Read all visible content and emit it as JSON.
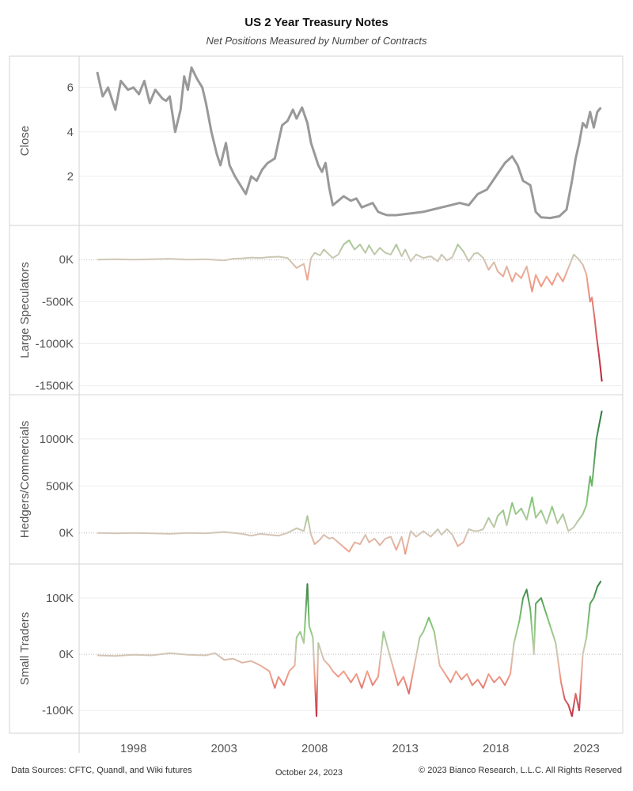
{
  "header": {
    "title": "US 2 Year Treasury Notes",
    "subtitle": "Net Positions Measured by Number of Contracts"
  },
  "footer": {
    "sources": "Data Sources: CFTC, Quandl, and Wiki futures",
    "date": "October 24, 2023",
    "copyright": "© 2023 Bianco Research, L.L.C. All Rights Reserved"
  },
  "chart_data": [
    {
      "type": "line",
      "ylabel": "Close",
      "ylim": [
        0,
        7.2
      ],
      "yticks": [
        {
          "v": 2,
          "label": "2"
        },
        {
          "v": 4,
          "label": "4"
        },
        {
          "v": 6,
          "label": "6"
        }
      ],
      "color": "#999999",
      "gradient": false,
      "points": [
        [
          1996.0,
          6.7
        ],
        [
          1996.3,
          5.6
        ],
        [
          1996.6,
          6.0
        ],
        [
          1997.0,
          5.0
        ],
        [
          1997.3,
          6.3
        ],
        [
          1997.7,
          5.9
        ],
        [
          1998.0,
          6.0
        ],
        [
          1998.3,
          5.7
        ],
        [
          1998.6,
          6.3
        ],
        [
          1998.9,
          5.3
        ],
        [
          1999.2,
          5.9
        ],
        [
          1999.6,
          5.5
        ],
        [
          1999.8,
          5.4
        ],
        [
          2000.0,
          5.6
        ],
        [
          2000.3,
          4.0
        ],
        [
          2000.6,
          5.0
        ],
        [
          2000.8,
          6.5
        ],
        [
          2001.0,
          5.9
        ],
        [
          2001.2,
          6.9
        ],
        [
          2001.5,
          6.4
        ],
        [
          2001.8,
          6.0
        ],
        [
          2002.0,
          5.3
        ],
        [
          2002.3,
          4.0
        ],
        [
          2002.6,
          3.0
        ],
        [
          2002.8,
          2.5
        ],
        [
          2003.1,
          3.5
        ],
        [
          2003.3,
          2.5
        ],
        [
          2003.6,
          2.0
        ],
        [
          2003.9,
          1.6
        ],
        [
          2004.2,
          1.2
        ],
        [
          2004.5,
          2.0
        ],
        [
          2004.8,
          1.8
        ],
        [
          2005.1,
          2.3
        ],
        [
          2005.4,
          2.6
        ],
        [
          2005.8,
          2.8
        ],
        [
          2006.2,
          4.3
        ],
        [
          2006.5,
          4.5
        ],
        [
          2006.8,
          5.0
        ],
        [
          2007.0,
          4.6
        ],
        [
          2007.3,
          5.1
        ],
        [
          2007.6,
          4.4
        ],
        [
          2007.8,
          3.5
        ],
        [
          2008.0,
          3.0
        ],
        [
          2008.2,
          2.5
        ],
        [
          2008.4,
          2.2
        ],
        [
          2008.6,
          2.6
        ],
        [
          2008.8,
          1.5
        ],
        [
          2009.0,
          0.7
        ],
        [
          2009.3,
          0.9
        ],
        [
          2009.6,
          1.1
        ],
        [
          2010.0,
          0.9
        ],
        [
          2010.3,
          1.0
        ],
        [
          2010.6,
          0.6
        ],
        [
          2010.9,
          0.7
        ],
        [
          2011.2,
          0.8
        ],
        [
          2011.5,
          0.4
        ],
        [
          2011.8,
          0.3
        ],
        [
          2012.0,
          0.25
        ],
        [
          2012.5,
          0.25
        ],
        [
          2013.0,
          0.3
        ],
        [
          2013.5,
          0.35
        ],
        [
          2014.0,
          0.4
        ],
        [
          2014.5,
          0.5
        ],
        [
          2015.0,
          0.6
        ],
        [
          2015.5,
          0.7
        ],
        [
          2016.0,
          0.8
        ],
        [
          2016.5,
          0.7
        ],
        [
          2017.0,
          1.2
        ],
        [
          2017.5,
          1.4
        ],
        [
          2018.0,
          2.0
        ],
        [
          2018.5,
          2.6
        ],
        [
          2018.9,
          2.9
        ],
        [
          2019.2,
          2.5
        ],
        [
          2019.5,
          1.8
        ],
        [
          2019.9,
          1.6
        ],
        [
          2020.2,
          0.4
        ],
        [
          2020.5,
          0.15
        ],
        [
          2021.0,
          0.12
        ],
        [
          2021.5,
          0.2
        ],
        [
          2021.9,
          0.5
        ],
        [
          2022.2,
          1.8
        ],
        [
          2022.4,
          2.8
        ],
        [
          2022.6,
          3.5
        ],
        [
          2022.8,
          4.4
        ],
        [
          2023.0,
          4.2
        ],
        [
          2023.2,
          4.9
        ],
        [
          2023.4,
          4.2
        ],
        [
          2023.6,
          4.9
        ],
        [
          2023.8,
          5.1
        ]
      ]
    },
    {
      "type": "line",
      "ylabel": "Large Speculators",
      "ylim": [
        -1550,
        350
      ],
      "yticks": [
        {
          "v": 0,
          "label": "0K"
        },
        {
          "v": -500,
          "label": "-500K"
        },
        {
          "v": -1000,
          "label": "-1000K"
        },
        {
          "v": -1500,
          "label": "-1500K"
        }
      ],
      "gradient": true,
      "points": [
        [
          1996.0,
          0
        ],
        [
          1997.0,
          5
        ],
        [
          1998.0,
          0
        ],
        [
          1999.0,
          5
        ],
        [
          2000.0,
          10
        ],
        [
          2001.0,
          0
        ],
        [
          2002.0,
          5
        ],
        [
          2003.0,
          -10
        ],
        [
          2003.5,
          10
        ],
        [
          2004.0,
          15
        ],
        [
          2004.5,
          25
        ],
        [
          2005.0,
          20
        ],
        [
          2005.5,
          30
        ],
        [
          2006.0,
          35
        ],
        [
          2006.5,
          20
        ],
        [
          2007.0,
          -100
        ],
        [
          2007.4,
          -50
        ],
        [
          2007.6,
          -240
        ],
        [
          2007.8,
          20
        ],
        [
          2008.0,
          80
        ],
        [
          2008.3,
          50
        ],
        [
          2008.5,
          120
        ],
        [
          2008.8,
          60
        ],
        [
          2009.0,
          20
        ],
        [
          2009.3,
          60
        ],
        [
          2009.6,
          180
        ],
        [
          2009.9,
          230
        ],
        [
          2010.2,
          120
        ],
        [
          2010.5,
          180
        ],
        [
          2010.8,
          80
        ],
        [
          2011.0,
          170
        ],
        [
          2011.3,
          60
        ],
        [
          2011.6,
          140
        ],
        [
          2011.9,
          80
        ],
        [
          2012.2,
          60
        ],
        [
          2012.5,
          180
        ],
        [
          2012.8,
          40
        ],
        [
          2013.0,
          120
        ],
        [
          2013.3,
          -20
        ],
        [
          2013.6,
          60
        ],
        [
          2014.0,
          20
        ],
        [
          2014.4,
          40
        ],
        [
          2014.8,
          -20
        ],
        [
          2015.0,
          60
        ],
        [
          2015.3,
          -10
        ],
        [
          2015.6,
          30
        ],
        [
          2015.9,
          180
        ],
        [
          2016.2,
          100
        ],
        [
          2016.5,
          -20
        ],
        [
          2016.8,
          70
        ],
        [
          2017.0,
          80
        ],
        [
          2017.3,
          20
        ],
        [
          2017.6,
          -120
        ],
        [
          2017.9,
          -30
        ],
        [
          2018.1,
          -140
        ],
        [
          2018.4,
          -200
        ],
        [
          2018.6,
          -80
        ],
        [
          2018.9,
          -260
        ],
        [
          2019.1,
          -160
        ],
        [
          2019.4,
          -220
        ],
        [
          2019.7,
          -80
        ],
        [
          2020.0,
          -380
        ],
        [
          2020.2,
          -180
        ],
        [
          2020.5,
          -320
        ],
        [
          2020.8,
          -200
        ],
        [
          2021.1,
          -300
        ],
        [
          2021.4,
          -160
        ],
        [
          2021.7,
          -260
        ],
        [
          2022.0,
          -100
        ],
        [
          2022.3,
          60
        ],
        [
          2022.5,
          20
        ],
        [
          2022.8,
          -60
        ],
        [
          2023.0,
          -180
        ],
        [
          2023.2,
          -500
        ],
        [
          2023.3,
          -450
        ],
        [
          2023.45,
          -700
        ],
        [
          2023.55,
          -900
        ],
        [
          2023.7,
          -1150
        ],
        [
          2023.85,
          -1450
        ]
      ]
    },
    {
      "type": "line",
      "ylabel": "Hedgers/Commercials",
      "ylim": [
        -280,
        1420
      ],
      "yticks": [
        {
          "v": 0,
          "label": "0K"
        },
        {
          "v": 500,
          "label": "500K"
        },
        {
          "v": 1000,
          "label": "1000K"
        }
      ],
      "gradient": true,
      "points": [
        [
          1996.0,
          0
        ],
        [
          1997.0,
          -5
        ],
        [
          1998.0,
          0
        ],
        [
          1999.0,
          -5
        ],
        [
          2000.0,
          -10
        ],
        [
          2001.0,
          0
        ],
        [
          2002.0,
          -5
        ],
        [
          2003.0,
          10
        ],
        [
          2004.0,
          -10
        ],
        [
          2004.5,
          -30
        ],
        [
          2005.0,
          -10
        ],
        [
          2005.5,
          -20
        ],
        [
          2006.0,
          -30
        ],
        [
          2006.5,
          0
        ],
        [
          2007.0,
          50
        ],
        [
          2007.4,
          20
        ],
        [
          2007.6,
          180
        ],
        [
          2007.8,
          -20
        ],
        [
          2008.0,
          -120
        ],
        [
          2008.3,
          -70
        ],
        [
          2008.5,
          -20
        ],
        [
          2008.8,
          -60
        ],
        [
          2009.0,
          -50
        ],
        [
          2009.3,
          -100
        ],
        [
          2009.6,
          -150
        ],
        [
          2009.9,
          -200
        ],
        [
          2010.2,
          -100
        ],
        [
          2010.5,
          -120
        ],
        [
          2010.8,
          -20
        ],
        [
          2011.0,
          -100
        ],
        [
          2011.3,
          -60
        ],
        [
          2011.6,
          -130
        ],
        [
          2011.9,
          -60
        ],
        [
          2012.2,
          -40
        ],
        [
          2012.5,
          -180
        ],
        [
          2012.8,
          -40
        ],
        [
          2013.0,
          -220
        ],
        [
          2013.3,
          20
        ],
        [
          2013.6,
          -40
        ],
        [
          2014.0,
          20
        ],
        [
          2014.4,
          -40
        ],
        [
          2014.8,
          40
        ],
        [
          2015.0,
          -20
        ],
        [
          2015.3,
          40
        ],
        [
          2015.6,
          -20
        ],
        [
          2015.9,
          -140
        ],
        [
          2016.2,
          -100
        ],
        [
          2016.5,
          40
        ],
        [
          2016.8,
          20
        ],
        [
          2017.0,
          20
        ],
        [
          2017.3,
          40
        ],
        [
          2017.6,
          160
        ],
        [
          2017.9,
          60
        ],
        [
          2018.1,
          180
        ],
        [
          2018.4,
          240
        ],
        [
          2018.6,
          80
        ],
        [
          2018.9,
          320
        ],
        [
          2019.1,
          200
        ],
        [
          2019.4,
          260
        ],
        [
          2019.7,
          140
        ],
        [
          2020.0,
          380
        ],
        [
          2020.2,
          160
        ],
        [
          2020.5,
          240
        ],
        [
          2020.8,
          100
        ],
        [
          2021.1,
          280
        ],
        [
          2021.4,
          100
        ],
        [
          2021.7,
          200
        ],
        [
          2022.0,
          20
        ],
        [
          2022.3,
          60
        ],
        [
          2022.5,
          120
        ],
        [
          2022.8,
          200
        ],
        [
          2023.0,
          300
        ],
        [
          2023.2,
          600
        ],
        [
          2023.3,
          500
        ],
        [
          2023.45,
          800
        ],
        [
          2023.55,
          1000
        ],
        [
          2023.7,
          1150
        ],
        [
          2023.85,
          1300
        ]
      ]
    },
    {
      "type": "line",
      "ylabel": "Small Traders",
      "ylim": [
        -132,
        152
      ],
      "yticks": [
        {
          "v": 100,
          "label": "100K"
        },
        {
          "v": 0,
          "label": "0K"
        },
        {
          "v": -100,
          "label": "-100K"
        }
      ],
      "gradient": true,
      "points": [
        [
          1996.0,
          -2
        ],
        [
          1997.0,
          -3
        ],
        [
          1998.0,
          -1
        ],
        [
          1999.0,
          -2
        ],
        [
          2000.0,
          2
        ],
        [
          2001.0,
          -1
        ],
        [
          2002.0,
          -2
        ],
        [
          2002.5,
          2
        ],
        [
          2003.0,
          -10
        ],
        [
          2003.5,
          -8
        ],
        [
          2004.0,
          -15
        ],
        [
          2004.5,
          -12
        ],
        [
          2005.0,
          -20
        ],
        [
          2005.5,
          -30
        ],
        [
          2005.8,
          -60
        ],
        [
          2006.0,
          -40
        ],
        [
          2006.3,
          -55
        ],
        [
          2006.6,
          -30
        ],
        [
          2006.9,
          -20
        ],
        [
          2007.0,
          30
        ],
        [
          2007.2,
          40
        ],
        [
          2007.4,
          20
        ],
        [
          2007.6,
          125
        ],
        [
          2007.7,
          50
        ],
        [
          2007.9,
          30
        ],
        [
          2008.1,
          -110
        ],
        [
          2008.2,
          20
        ],
        [
          2008.5,
          -10
        ],
        [
          2008.8,
          -20
        ],
        [
          2009.0,
          -30
        ],
        [
          2009.3,
          -40
        ],
        [
          2009.6,
          -30
        ],
        [
          2010.0,
          -50
        ],
        [
          2010.3,
          -35
        ],
        [
          2010.6,
          -60
        ],
        [
          2010.9,
          -30
        ],
        [
          2011.2,
          -55
        ],
        [
          2011.5,
          -40
        ],
        [
          2011.8,
          40
        ],
        [
          2012.0,
          15
        ],
        [
          2012.3,
          -20
        ],
        [
          2012.6,
          -55
        ],
        [
          2012.9,
          -40
        ],
        [
          2013.2,
          -70
        ],
        [
          2013.5,
          -20
        ],
        [
          2013.8,
          30
        ],
        [
          2014.0,
          40
        ],
        [
          2014.3,
          65
        ],
        [
          2014.6,
          40
        ],
        [
          2014.9,
          -20
        ],
        [
          2015.2,
          -35
        ],
        [
          2015.5,
          -50
        ],
        [
          2015.8,
          -30
        ],
        [
          2016.1,
          -45
        ],
        [
          2016.4,
          -35
        ],
        [
          2016.7,
          -55
        ],
        [
          2017.0,
          -45
        ],
        [
          2017.3,
          -60
        ],
        [
          2017.6,
          -35
        ],
        [
          2017.9,
          -50
        ],
        [
          2018.2,
          -40
        ],
        [
          2018.5,
          -55
        ],
        [
          2018.8,
          -35
        ],
        [
          2019.0,
          20
        ],
        [
          2019.3,
          60
        ],
        [
          2019.5,
          100
        ],
        [
          2019.7,
          115
        ],
        [
          2019.9,
          80
        ],
        [
          2020.1,
          0
        ],
        [
          2020.2,
          90
        ],
        [
          2020.5,
          100
        ],
        [
          2020.8,
          70
        ],
        [
          2021.0,
          50
        ],
        [
          2021.3,
          20
        ],
        [
          2021.6,
          -50
        ],
        [
          2021.8,
          -80
        ],
        [
          2022.0,
          -90
        ],
        [
          2022.2,
          -110
        ],
        [
          2022.4,
          -70
        ],
        [
          2022.6,
          -100
        ],
        [
          2022.8,
          0
        ],
        [
          2023.0,
          30
        ],
        [
          2023.2,
          90
        ],
        [
          2023.4,
          100
        ],
        [
          2023.6,
          120
        ],
        [
          2023.8,
          130
        ]
      ]
    }
  ],
  "xaxis": {
    "range": [
      1995.0,
      2025.0
    ],
    "ticks": [
      {
        "v": 1998,
        "label": "1998"
      },
      {
        "v": 2003,
        "label": "2003"
      },
      {
        "v": 2008,
        "label": "2008"
      },
      {
        "v": 2013,
        "label": "2013"
      },
      {
        "v": 2018,
        "label": "2018"
      },
      {
        "v": 2023,
        "label": "2023"
      }
    ]
  }
}
